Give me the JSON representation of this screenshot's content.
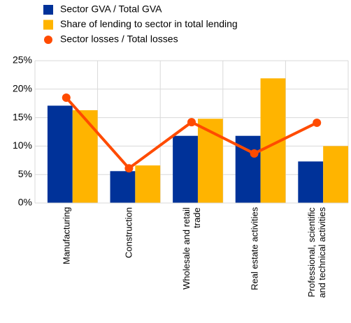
{
  "chart_data": {
    "type": "bar_line",
    "categories": [
      "Manufacturing",
      "Construction",
      "Wholesale and retail\ntrade",
      "Real estate activities",
      "Professional, scientific\nand technical activities"
    ],
    "series": [
      {
        "name": "Sector GVA / Total GVA",
        "type": "bar",
        "color": "#003299",
        "values": [
          17.1,
          5.6,
          11.8,
          11.8,
          7.3
        ]
      },
      {
        "name": "Share of lending to sector in total lending",
        "type": "bar",
        "color": "#ffb400",
        "values": [
          16.3,
          6.6,
          14.8,
          21.9,
          10.0
        ]
      },
      {
        "name": "Sector losses / Total losses",
        "type": "line",
        "color": "#ff4b00",
        "values": [
          18.5,
          6.1,
          14.2,
          8.7,
          14.1
        ]
      }
    ],
    "ylim": [
      0,
      25
    ],
    "yticks": [
      {
        "value": 0,
        "label": "0%"
      },
      {
        "value": 5,
        "label": "5%"
      },
      {
        "value": 10,
        "label": "10%"
      },
      {
        "value": 15,
        "label": "15%"
      },
      {
        "value": 20,
        "label": "20%"
      },
      {
        "value": 25,
        "label": "25%"
      }
    ],
    "grid": true
  }
}
